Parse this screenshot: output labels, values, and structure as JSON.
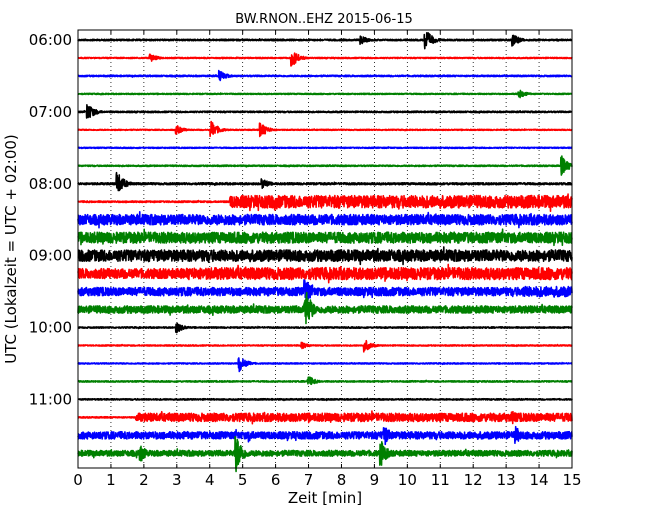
{
  "chart_data": {
    "type": "line",
    "title": "BW.RNON..EHZ 2015-06-15",
    "xlabel": "Zeit  [min]",
    "ylabel": "UTC (Lokalzeit = UTC + 02:00)",
    "xlim": [
      0,
      15
    ],
    "x_ticks": [
      "0",
      "1",
      "2",
      "3",
      "4",
      "5",
      "6",
      "7",
      "8",
      "9",
      "10",
      "11",
      "12",
      "13",
      "14",
      "15"
    ],
    "y_ticks": [
      "06:00",
      "07:00",
      "08:00",
      "09:00",
      "10:00",
      "11:00"
    ],
    "y_tick_rows": [
      0,
      4,
      8,
      12,
      16,
      20
    ],
    "grid": "vertical-dotted",
    "colors": [
      "#000000",
      "#ff0000",
      "#0000ff",
      "#008000"
    ],
    "row_minutes": 15,
    "traces": [
      {
        "start": "06:00",
        "color": "#000000",
        "noise": 0.3,
        "segments": [],
        "events": [
          [
            10.55,
            1.0
          ],
          [
            13.2,
            0.6
          ],
          [
            8.6,
            0.4
          ]
        ]
      },
      {
        "start": "06:15",
        "color": "#ff0000",
        "noise": 0.22,
        "segments": [],
        "events": [
          [
            6.5,
            0.8
          ],
          [
            2.2,
            0.4
          ]
        ]
      },
      {
        "start": "06:30",
        "color": "#0000ff",
        "noise": 0.28,
        "segments": [],
        "events": [
          [
            4.3,
            0.5
          ]
        ]
      },
      {
        "start": "06:45",
        "color": "#008000",
        "noise": 0.22,
        "segments": [],
        "events": [
          [
            13.4,
            0.4
          ]
        ]
      },
      {
        "start": "07:00",
        "color": "#000000",
        "noise": 0.28,
        "segments": [],
        "events": [
          [
            0.3,
            0.8
          ]
        ]
      },
      {
        "start": "07:15",
        "color": "#ff0000",
        "noise": 0.2,
        "segments": [],
        "events": [
          [
            4.05,
            0.8
          ],
          [
            5.55,
            0.7
          ],
          [
            3.0,
            0.4
          ]
        ]
      },
      {
        "start": "07:30",
        "color": "#0000ff",
        "noise": 0.22,
        "segments": [],
        "events": []
      },
      {
        "start": "07:45",
        "color": "#008000",
        "noise": 0.26,
        "segments": [],
        "events": [
          [
            14.7,
            0.9
          ]
        ]
      },
      {
        "start": "08:00",
        "color": "#000000",
        "noise": 0.38,
        "segments": [],
        "events": [
          [
            1.2,
            1.1
          ],
          [
            5.6,
            0.5
          ]
        ]
      },
      {
        "start": "08:15",
        "color": "#ff0000",
        "noise": 0.3,
        "segments": [
          [
            4.6,
            15,
            2.4
          ]
        ],
        "events": [
          [
            6.0,
            0.8
          ]
        ]
      },
      {
        "start": "08:30",
        "color": "#0000ff",
        "noise": 2.0,
        "segments": [],
        "events": []
      },
      {
        "start": "08:45",
        "color": "#008000",
        "noise": 2.1,
        "segments": [],
        "events": []
      },
      {
        "start": "09:00",
        "color": "#000000",
        "noise": 2.2,
        "segments": [],
        "events": []
      },
      {
        "start": "09:15",
        "color": "#ff0000",
        "noise": 1.9,
        "segments": [
          [
            3.3,
            15,
            2.3
          ]
        ],
        "events": []
      },
      {
        "start": "09:30",
        "color": "#0000ff",
        "noise": 1.6,
        "segments": [
          [
            13.5,
            15,
            2.0
          ]
        ],
        "events": [
          [
            6.9,
            1.4
          ]
        ]
      },
      {
        "start": "09:45",
        "color": "#008000",
        "noise": 1.4,
        "segments": [
          [
            7.3,
            15,
            0.45
          ]
        ],
        "events": [
          [
            6.9,
            2.0
          ]
        ]
      },
      {
        "start": "10:00",
        "color": "#000000",
        "noise": 0.26,
        "segments": [],
        "events": [
          [
            3.0,
            0.5
          ]
        ]
      },
      {
        "start": "10:15",
        "color": "#ff0000",
        "noise": 0.22,
        "segments": [],
        "events": [
          [
            8.7,
            0.6
          ],
          [
            6.8,
            0.3
          ]
        ]
      },
      {
        "start": "10:30",
        "color": "#0000ff",
        "noise": 0.22,
        "segments": [],
        "events": [
          [
            4.9,
            0.8
          ]
        ]
      },
      {
        "start": "10:45",
        "color": "#008000",
        "noise": 0.26,
        "segments": [],
        "events": [
          [
            7.0,
            0.5
          ]
        ]
      },
      {
        "start": "11:00",
        "color": "#000000",
        "noise": 0.26,
        "segments": [],
        "events": []
      },
      {
        "start": "11:15",
        "color": "#ff0000",
        "noise": 0.25,
        "segments": [
          [
            1.75,
            15,
            1.6
          ]
        ],
        "events": [
          [
            13.2,
            0.6
          ]
        ]
      },
      {
        "start": "11:30",
        "color": "#0000ff",
        "noise": 1.4,
        "segments": [],
        "events": [
          [
            9.3,
            1.0
          ],
          [
            13.3,
            0.8
          ],
          [
            5.2,
            0.6
          ]
        ]
      },
      {
        "start": "11:45",
        "color": "#008000",
        "noise": 1.1,
        "segments": [],
        "events": [
          [
            4.8,
            1.8
          ],
          [
            9.2,
            1.2
          ],
          [
            1.9,
            0.8
          ]
        ]
      }
    ]
  }
}
